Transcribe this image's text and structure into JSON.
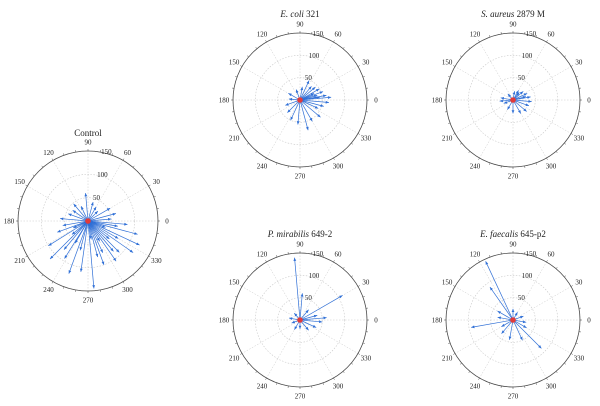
{
  "chart_data": [
    {
      "type": "polar-vector",
      "title": "Control",
      "title_parts": [
        {
          "text": "Control",
          "italic": false
        }
      ],
      "radial_ticks": [
        50,
        100,
        150
      ],
      "rmax": 150,
      "angle_ticks": [
        0,
        30,
        60,
        90,
        120,
        150,
        180,
        210,
        240,
        270,
        300,
        330
      ],
      "vectors": [
        {
          "angle": 355,
          "r": 85
        },
        {
          "angle": 345,
          "r": 110
        },
        {
          "angle": 335,
          "r": 122
        },
        {
          "angle": 325,
          "r": 118
        },
        {
          "angle": 315,
          "r": 95
        },
        {
          "angle": 305,
          "r": 105
        },
        {
          "angle": 295,
          "r": 75
        },
        {
          "angle": 285,
          "r": 80
        },
        {
          "angle": 275,
          "r": 145
        },
        {
          "angle": 262,
          "r": 110
        },
        {
          "angle": 250,
          "r": 120
        },
        {
          "angle": 238,
          "r": 95
        },
        {
          "angle": 225,
          "r": 115
        },
        {
          "angle": 212,
          "r": 100
        },
        {
          "angle": 200,
          "r": 70
        },
        {
          "angle": 190,
          "r": 55
        },
        {
          "angle": 175,
          "r": 60
        },
        {
          "angle": 160,
          "r": 45
        },
        {
          "angle": 145,
          "r": 40
        },
        {
          "angle": 130,
          "r": 48
        },
        {
          "angle": 115,
          "r": 35
        },
        {
          "angle": 95,
          "r": 60
        },
        {
          "angle": 75,
          "r": 42
        },
        {
          "angle": 60,
          "r": 35
        },
        {
          "angle": 45,
          "r": 30
        },
        {
          "angle": 30,
          "r": 55
        },
        {
          "angle": 15,
          "r": 62
        },
        {
          "angle": 5,
          "r": 50
        },
        {
          "angle": 320,
          "r": 60
        },
        {
          "angle": 300,
          "r": 50
        },
        {
          "angle": 280,
          "r": 40
        },
        {
          "angle": 240,
          "r": 55
        },
        {
          "angle": 220,
          "r": 45
        },
        {
          "angle": 205,
          "r": 35
        },
        {
          "angle": 340,
          "r": 40
        },
        {
          "angle": 350,
          "r": 65
        },
        {
          "angle": 330,
          "r": 75
        },
        {
          "angle": 310,
          "r": 85
        },
        {
          "angle": 290,
          "r": 100
        },
        {
          "angle": 255,
          "r": 65
        },
        {
          "angle": 230,
          "r": 80
        }
      ]
    },
    {
      "type": "polar-vector",
      "title": "E. coli 321",
      "title_parts": [
        {
          "text": "E. coli",
          "italic": true
        },
        {
          "text": " 321",
          "italic": false
        }
      ],
      "radial_ticks": [
        50,
        100,
        150
      ],
      "rmax": 150,
      "angle_ticks": [
        0,
        30,
        60,
        90,
        120,
        150,
        180,
        210,
        240,
        270,
        300,
        330
      ],
      "vectors": [
        {
          "angle": 10,
          "r": 60
        },
        {
          "angle": 20,
          "r": 55
        },
        {
          "angle": 5,
          "r": 70
        },
        {
          "angle": 355,
          "r": 65
        },
        {
          "angle": 345,
          "r": 55
        },
        {
          "angle": 30,
          "r": 50
        },
        {
          "angle": 40,
          "r": 45
        },
        {
          "angle": 50,
          "r": 40
        },
        {
          "angle": 65,
          "r": 48
        },
        {
          "angle": 80,
          "r": 30
        },
        {
          "angle": 110,
          "r": 25
        },
        {
          "angle": 150,
          "r": 30
        },
        {
          "angle": 175,
          "r": 25
        },
        {
          "angle": 200,
          "r": 35
        },
        {
          "angle": 225,
          "r": 40
        },
        {
          "angle": 245,
          "r": 50
        },
        {
          "angle": 265,
          "r": 55
        },
        {
          "angle": 285,
          "r": 70
        },
        {
          "angle": 300,
          "r": 55
        },
        {
          "angle": 320,
          "r": 60
        },
        {
          "angle": 335,
          "r": 45
        },
        {
          "angle": 15,
          "r": 40
        },
        {
          "angle": 25,
          "r": 35
        },
        {
          "angle": 8,
          "r": 45
        }
      ]
    },
    {
      "type": "polar-vector",
      "title": "S. aureus 2879 M",
      "title_parts": [
        {
          "text": "S. aureus",
          "italic": true
        },
        {
          "text": " 2879 M",
          "italic": false
        }
      ],
      "radial_ticks": [
        50,
        100,
        150
      ],
      "rmax": 150,
      "angle_ticks": [
        0,
        30,
        60,
        90,
        120,
        150,
        180,
        210,
        240,
        270,
        300,
        330
      ],
      "vectors": [
        {
          "angle": 10,
          "r": 40
        },
        {
          "angle": 25,
          "r": 35
        },
        {
          "angle": 40,
          "r": 30
        },
        {
          "angle": 60,
          "r": 25
        },
        {
          "angle": 80,
          "r": 20
        },
        {
          "angle": 130,
          "r": 18
        },
        {
          "angle": 170,
          "r": 28
        },
        {
          "angle": 185,
          "r": 30
        },
        {
          "angle": 200,
          "r": 22
        },
        {
          "angle": 240,
          "r": 25
        },
        {
          "angle": 270,
          "r": 30
        },
        {
          "angle": 300,
          "r": 35
        },
        {
          "angle": 320,
          "r": 40
        },
        {
          "angle": 340,
          "r": 38
        },
        {
          "angle": 355,
          "r": 42
        },
        {
          "angle": 15,
          "r": 30
        },
        {
          "angle": 50,
          "r": 22
        }
      ]
    },
    {
      "type": "polar-vector",
      "title": "P. mirabilis 649-2",
      "title_parts": [
        {
          "text": "P. mirabilis",
          "italic": true
        },
        {
          "text": " 649-2",
          "italic": false
        }
      ],
      "radial_ticks": [
        50,
        100,
        150
      ],
      "rmax": 150,
      "angle_ticks": [
        0,
        30,
        60,
        90,
        120,
        150,
        180,
        210,
        240,
        270,
        300,
        330
      ],
      "vectors": [
        {
          "angle": 95,
          "r": 140
        },
        {
          "angle": 30,
          "r": 110
        },
        {
          "angle": 85,
          "r": 60
        },
        {
          "angle": 5,
          "r": 60
        },
        {
          "angle": 355,
          "r": 50
        },
        {
          "angle": 15,
          "r": 40
        },
        {
          "angle": 50,
          "r": 30
        },
        {
          "angle": 130,
          "r": 20
        },
        {
          "angle": 170,
          "r": 25
        },
        {
          "angle": 200,
          "r": 20
        },
        {
          "angle": 240,
          "r": 25
        },
        {
          "angle": 270,
          "r": 20
        },
        {
          "angle": 310,
          "r": 30
        },
        {
          "angle": 335,
          "r": 40
        }
      ]
    },
    {
      "type": "polar-vector",
      "title": "E. faecalis 645-p2",
      "title_parts": [
        {
          "text": "E. faecalis",
          "italic": true
        },
        {
          "text": " 645-p2",
          "italic": false
        }
      ],
      "radial_ticks": [
        50,
        100,
        150
      ],
      "rmax": 150,
      "angle_ticks": [
        0,
        30,
        60,
        90,
        120,
        150,
        180,
        210,
        240,
        270,
        300,
        330
      ],
      "vectors": [
        {
          "angle": 115,
          "r": 145
        },
        {
          "angle": 125,
          "r": 90
        },
        {
          "angle": 190,
          "r": 95
        },
        {
          "angle": 315,
          "r": 90
        },
        {
          "angle": 295,
          "r": 50
        },
        {
          "angle": 260,
          "r": 45
        },
        {
          "angle": 230,
          "r": 40
        },
        {
          "angle": 210,
          "r": 30
        },
        {
          "angle": 170,
          "r": 35
        },
        {
          "angle": 150,
          "r": 40
        },
        {
          "angle": 90,
          "r": 25
        },
        {
          "angle": 60,
          "r": 20
        },
        {
          "angle": 20,
          "r": 25
        },
        {
          "angle": 350,
          "r": 30
        },
        {
          "angle": 330,
          "r": 35
        }
      ]
    }
  ],
  "colors": {
    "vector": "#2f6fd6",
    "center_marker": "#e23a3a",
    "grid": "#c8c8c8",
    "outer_ring": "#4a4a4a"
  }
}
